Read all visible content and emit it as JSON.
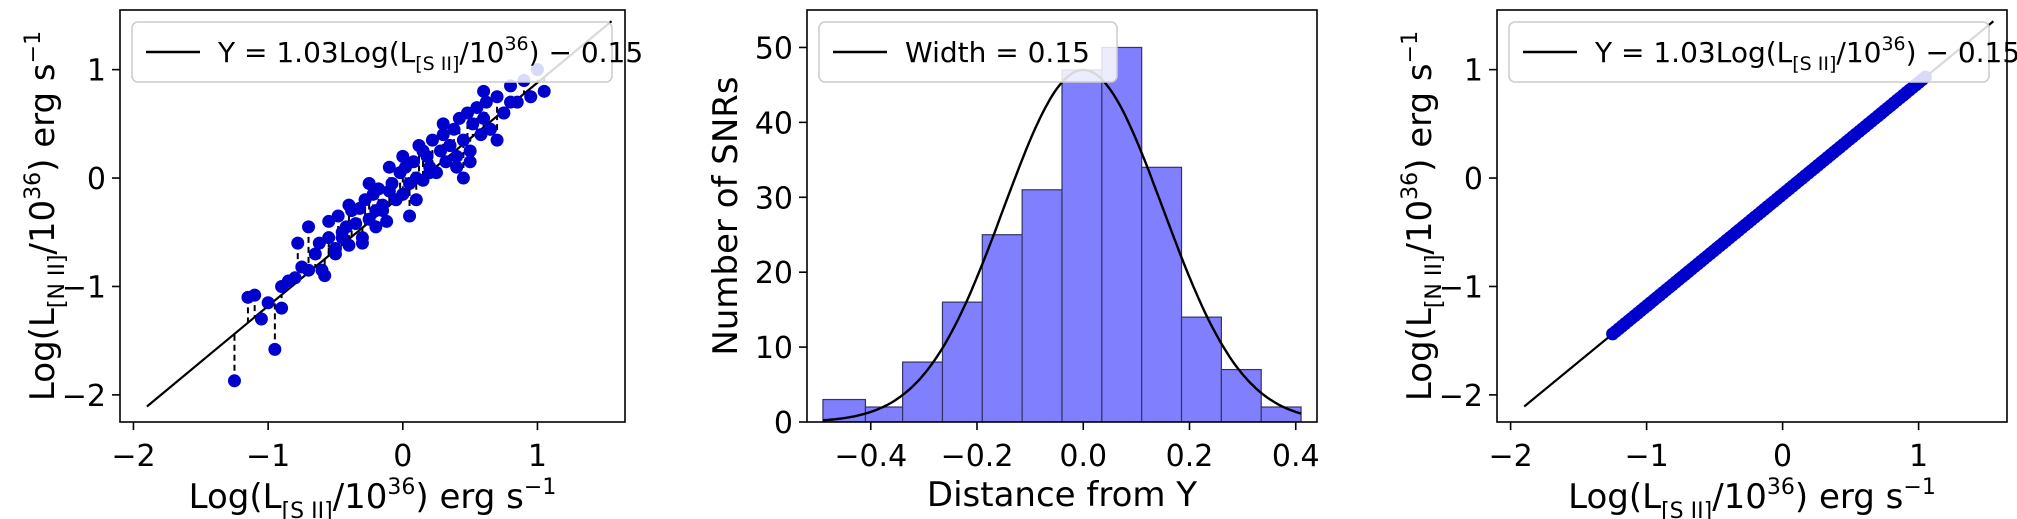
{
  "figure": {
    "panels": [
      "scatter_left",
      "histogram_middle",
      "scatter_right"
    ]
  },
  "colors": {
    "points": "#0000cc",
    "bars": "#8080ff",
    "bar_edge": "#333366",
    "line": "#000000",
    "axes": "#000000",
    "legend_border": "#cccccc"
  },
  "chart_data": [
    {
      "type": "scatter",
      "id": "left",
      "xlabel": "Log(L[SII]/10^36) erg s^-1",
      "ylabel": "Log(L[NII]/10^36) erg s^-1",
      "xlim": [
        -2.1,
        1.65
      ],
      "ylim": [
        -2.25,
        1.55
      ],
      "xticks": [
        -2,
        -1,
        0,
        1
      ],
      "yticks": [
        -2,
        -1,
        0,
        1
      ],
      "xtick_labels": [
        "−2",
        "−1",
        "0",
        "1"
      ],
      "ytick_labels": [
        "−2",
        "−1",
        "0",
        "1"
      ],
      "legend": {
        "placement": "top-left",
        "entries": [
          "Y = 1.03Log(L[SII]/10^36) − 0.15"
        ]
      },
      "fit": {
        "slope": 1.03,
        "intercept": -0.15,
        "xrange": [
          -1.9,
          1.55
        ]
      },
      "residual_lines": true,
      "series": [
        {
          "x": [
            -1.25,
            -1.15,
            -1.1,
            -1.05,
            -1.0,
            -0.95,
            -0.9,
            -0.85,
            -0.8,
            -0.75,
            -0.7,
            -0.65,
            -0.62,
            -0.58,
            -0.55,
            -0.5,
            -0.48,
            -0.45,
            -0.42,
            -0.4,
            -0.38,
            -0.35,
            -0.32,
            -0.3,
            -0.28,
            -0.25,
            -0.22,
            -0.2,
            -0.18,
            -0.15,
            -0.12,
            -0.1,
            -0.08,
            -0.05,
            -0.02,
            0.0,
            0.02,
            0.05,
            0.08,
            0.1,
            0.12,
            0.15,
            0.18,
            0.2,
            0.22,
            0.25,
            0.28,
            0.3,
            0.32,
            0.35,
            0.38,
            0.4,
            0.42,
            0.45,
            0.48,
            0.5,
            0.52,
            0.55,
            0.58,
            0.6,
            0.62,
            0.65,
            0.7,
            0.75,
            0.8,
            0.85,
            0.9,
            0.95,
            1.0,
            1.05,
            -0.7,
            -0.5,
            -0.3,
            -0.1,
            0.1,
            0.3,
            0.5,
            0.7,
            -0.6,
            -0.4,
            -0.2,
            0.0,
            0.2,
            0.4,
            0.6,
            0.8,
            -0.9,
            -0.55,
            -0.25,
            0.05,
            0.35,
            0.65,
            -0.78,
            -0.45,
            -0.15,
            0.15,
            0.45,
            0.75
          ],
          "y": [
            -1.87,
            -1.1,
            -1.08,
            -1.3,
            -1.15,
            -1.58,
            -1.0,
            -0.95,
            -0.92,
            -0.82,
            -0.85,
            -0.7,
            -0.6,
            -0.9,
            -0.55,
            -0.65,
            -0.35,
            -0.5,
            -0.45,
            -0.62,
            -0.3,
            -0.42,
            -0.28,
            -0.55,
            -0.2,
            -0.38,
            -0.15,
            -0.3,
            -0.1,
            -0.25,
            -0.4,
            -0.12,
            -0.05,
            -0.2,
            0.05,
            -0.15,
            0.1,
            -0.05,
            0.15,
            0.0,
            0.3,
            -0.02,
            0.2,
            0.1,
            0.35,
            0.05,
            0.25,
            0.4,
            0.15,
            0.3,
            0.45,
            0.2,
            0.55,
            0.35,
            0.6,
            0.25,
            0.5,
            0.65,
            0.4,
            0.55,
            0.7,
            0.45,
            0.75,
            0.6,
            0.85,
            0.7,
            0.9,
            0.75,
            1.0,
            0.8,
            -0.45,
            -0.7,
            -0.6,
            0.1,
            -0.2,
            0.5,
            0.15,
            0.35,
            -0.85,
            -0.25,
            -0.45,
            0.2,
            0.05,
            0.1,
            0.8,
            0.7,
            -1.2,
            -0.4,
            -0.05,
            -0.35,
            0.3,
            0.45,
            -0.6,
            -0.55,
            -0.3,
            0.25,
            0.0,
            0.6
          ]
        }
      ]
    },
    {
      "type": "bar",
      "id": "middle",
      "xlabel": "Distance from Y",
      "ylabel": "Number of SNRs",
      "xlim": [
        -0.52,
        0.44
      ],
      "ylim": [
        0,
        55
      ],
      "xticks": [
        -0.4,
        -0.2,
        0.0,
        0.2,
        0.4
      ],
      "yticks": [
        0,
        10,
        20,
        30,
        40,
        50
      ],
      "xtick_labels": [
        "−0.4",
        "−0.2",
        "0.0",
        "0.2",
        "0.4"
      ],
      "ytick_labels": [
        "0",
        "10",
        "20",
        "30",
        "40",
        "50"
      ],
      "legend": {
        "placement": "top-left",
        "entries": [
          "Width = 0.15"
        ]
      },
      "bin_edges": [
        -0.49,
        -0.41,
        -0.34,
        -0.265,
        -0.19,
        -0.115,
        -0.04,
        0.035,
        0.11,
        0.185,
        0.26,
        0.335,
        0.41
      ],
      "values": [
        3,
        2,
        8,
        16,
        25,
        31,
        47,
        50,
        34,
        14,
        7,
        2
      ],
      "gaussian": {
        "amplitude": 47,
        "mean": 0.0,
        "sigma": 0.15,
        "xrange": [
          -0.49,
          0.41
        ]
      }
    },
    {
      "type": "scatter",
      "id": "right",
      "xlabel": "Log(L[SII]/10^36) erg s^-1",
      "ylabel": "Log(L[NII]/10^36) erg s^-1",
      "xlim": [
        -2.1,
        1.65
      ],
      "ylim": [
        -2.25,
        1.55
      ],
      "xticks": [
        -2,
        -1,
        0,
        1
      ],
      "yticks": [
        -2,
        -1,
        0,
        1
      ],
      "xtick_labels": [
        "−2",
        "−1",
        "0",
        "1"
      ],
      "ytick_labels": [
        "−2",
        "−1",
        "0",
        "1"
      ],
      "legend": {
        "placement": "top-left",
        "entries": [
          "Y = 1.03Log(L[SII]/10^36) − 0.15"
        ]
      },
      "fit": {
        "slope": 1.03,
        "intercept": -0.15,
        "xrange": [
          -1.9,
          1.55
        ]
      },
      "series": [
        {
          "x_range": [
            -1.25,
            1.05
          ],
          "on_fit_line": true
        }
      ]
    }
  ]
}
